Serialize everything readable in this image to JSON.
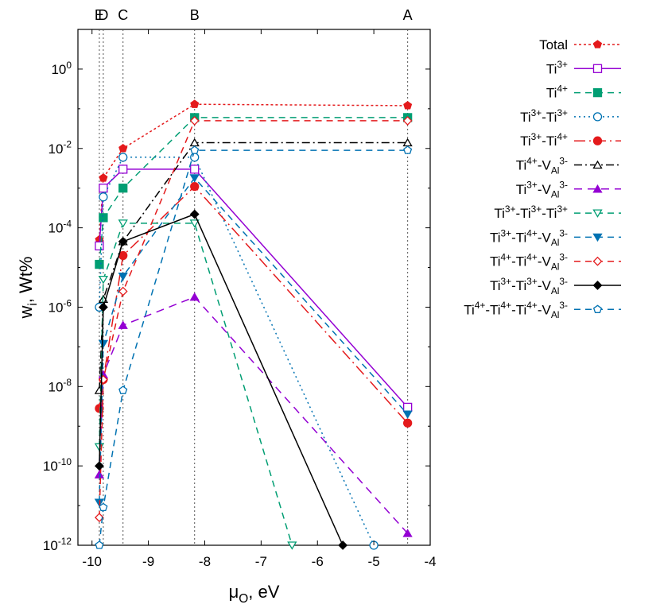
{
  "chart_data": {
    "type": "line",
    "xlabel": "μO, eV",
    "xlabel_main": "μ",
    "xlabel_sub": "O",
    "xlabel_rest": ", eV",
    "ylabel": "wi, Wt%",
    "ylabel_main": "w",
    "ylabel_sub": "i",
    "ylabel_rest": ", Wt%",
    "xlim": [
      -10.25,
      -4.0
    ],
    "ylim": [
      1e-12,
      10
    ],
    "y_scale": "log",
    "x_ticks": [
      {
        "value": -10,
        "label": "-10"
      },
      {
        "value": -9,
        "label": "-9"
      },
      {
        "value": -8,
        "label": "-8"
      },
      {
        "value": -7,
        "label": "-7"
      },
      {
        "value": -6,
        "label": "-6"
      },
      {
        "value": -5,
        "label": "-5"
      },
      {
        "value": -4,
        "label": "-4"
      }
    ],
    "y_ticks": [
      {
        "value": 1,
        "base": "10",
        "exp": "0"
      },
      {
        "value": 0.01,
        "base": "10",
        "exp": "-2"
      },
      {
        "value": 0.0001,
        "base": "10",
        "exp": "-4"
      },
      {
        "value": 1e-06,
        "base": "10",
        "exp": "-6"
      },
      {
        "value": 1e-08,
        "base": "10",
        "exp": "-8"
      },
      {
        "value": 1e-10,
        "base": "10",
        "exp": "-10"
      },
      {
        "value": 1e-12,
        "base": "10",
        "exp": "-12"
      }
    ],
    "vertical_lines": [
      {
        "x": -9.87,
        "label": "E"
      },
      {
        "x": -9.8,
        "label": "D"
      },
      {
        "x": -9.45,
        "label": "C"
      },
      {
        "x": -8.18,
        "label": "B"
      },
      {
        "x": -4.4,
        "label": "A"
      }
    ],
    "legend_position": "outside-right",
    "series": [
      {
        "name": "Total",
        "color": "#e41a1c",
        "dash": "3,3",
        "marker": "pentagon-filled",
        "x": [
          -9.87,
          -9.8,
          -9.45,
          -8.18,
          -4.4
        ],
        "y": [
          5e-05,
          0.0018,
          0.01,
          0.13,
          0.12
        ]
      },
      {
        "name": "Ti3+",
        "name_parts": [
          {
            "t": "Ti"
          },
          {
            "t": "3+",
            "s": "sup"
          }
        ],
        "color": "#9400d3",
        "dash": "",
        "marker": "square-open",
        "x": [
          -9.87,
          -9.8,
          -9.45,
          -8.18,
          -4.4
        ],
        "y": [
          3.5e-05,
          0.001,
          0.003,
          0.003,
          3e-09
        ]
      },
      {
        "name": "Ti4+",
        "name_parts": [
          {
            "t": "Ti"
          },
          {
            "t": "4+",
            "s": "sup"
          }
        ],
        "color": "#009e73",
        "dash": "8,6",
        "marker": "square-filled",
        "x": [
          -9.87,
          -9.8,
          -9.45,
          -8.18,
          -4.4
        ],
        "y": [
          1.2e-05,
          0.00018,
          0.001,
          0.06,
          0.06
        ]
      },
      {
        "name": "Ti3+-Ti3+",
        "name_parts": [
          {
            "t": "Ti"
          },
          {
            "t": "3+",
            "s": "sup"
          },
          {
            "t": "-Ti"
          },
          {
            "t": "3+",
            "s": "sup"
          }
        ],
        "color": "#0072b2",
        "dash": "2,4",
        "marker": "circle-open",
        "x": [
          -9.87,
          -9.8,
          -9.45,
          -8.18,
          -5.0
        ],
        "y": [
          1e-06,
          0.0006,
          0.006,
          0.006,
          1e-12
        ]
      },
      {
        "name": "Ti3+-Ti4+",
        "name_parts": [
          {
            "t": "Ti"
          },
          {
            "t": "3+",
            "s": "sup"
          },
          {
            "t": "-Ti"
          },
          {
            "t": "4+",
            "s": "sup"
          }
        ],
        "color": "#e41a1c",
        "dash": "14,5,2,5",
        "marker": "circle-filled",
        "x": [
          -9.87,
          -9.8,
          -9.45,
          -8.18,
          -4.4
        ],
        "y": [
          2.8e-09,
          1.5e-08,
          2e-05,
          0.0011,
          1.2e-09
        ]
      },
      {
        "name": "Ti4+-VAl3-",
        "name_parts": [
          {
            "t": "Ti"
          },
          {
            "t": "4+",
            "s": "sup"
          },
          {
            "t": "-V"
          },
          {
            "t": "Al",
            "s": "sub"
          },
          {
            "t": "3-",
            "s": "sup"
          }
        ],
        "color": "#000000",
        "dash": "10,4,2,4",
        "marker": "triangle-open",
        "x": [
          -9.87,
          -9.8,
          -9.45,
          -8.18,
          -4.4
        ],
        "y": [
          8e-09,
          1.6e-06,
          4.5e-05,
          0.014,
          0.014
        ]
      },
      {
        "name": "Ti3+-VAl3-",
        "name_parts": [
          {
            "t": "Ti"
          },
          {
            "t": "3+",
            "s": "sup"
          },
          {
            "t": "-V"
          },
          {
            "t": "Al",
            "s": "sub"
          },
          {
            "t": "3-",
            "s": "sup"
          }
        ],
        "color": "#9400d3",
        "dash": "10,7",
        "marker": "triangle-filled",
        "x": [
          -9.87,
          -9.8,
          -9.45,
          -8.18,
          -4.4
        ],
        "y": [
          6e-11,
          2e-08,
          3.5e-07,
          1.8e-06,
          2e-12
        ]
      },
      {
        "name": "Ti3+-Ti3+-Ti3+",
        "name_parts": [
          {
            "t": "Ti"
          },
          {
            "t": "3+",
            "s": "sup"
          },
          {
            "t": "-Ti"
          },
          {
            "t": "3+",
            "s": "sup"
          },
          {
            "t": "-Ti"
          },
          {
            "t": "3+",
            "s": "sup"
          }
        ],
        "color": "#009e73",
        "dash": "8,6",
        "marker": "triangle-down-open",
        "x": [
          -9.87,
          -9.8,
          -9.45,
          -8.18,
          -6.45
        ],
        "y": [
          3e-10,
          5e-06,
          0.00013,
          0.00013,
          1e-12
        ]
      },
      {
        "name": "Ti3+-Ti4+-VAl3-",
        "name_parts": [
          {
            "t": "Ti"
          },
          {
            "t": "3+",
            "s": "sup"
          },
          {
            "t": "-Ti"
          },
          {
            "t": "4+",
            "s": "sup"
          },
          {
            "t": "-V"
          },
          {
            "t": "Al",
            "s": "sub"
          },
          {
            "t": "3-",
            "s": "sup"
          }
        ],
        "color": "#0072b2",
        "dash": "8,6",
        "marker": "triangle-down-filled",
        "x": [
          -9.87,
          -9.8,
          -9.45,
          -8.18,
          -4.4
        ],
        "y": [
          1.2e-11,
          1.2e-07,
          6e-06,
          0.0018,
          2e-09
        ]
      },
      {
        "name": "Ti4+-Ti4+-VAl3-",
        "name_parts": [
          {
            "t": "Ti"
          },
          {
            "t": "4+",
            "s": "sup"
          },
          {
            "t": "-Ti"
          },
          {
            "t": "4+",
            "s": "sup"
          },
          {
            "t": "-V"
          },
          {
            "t": "Al",
            "s": "sub"
          },
          {
            "t": "3-",
            "s": "sup"
          }
        ],
        "color": "#e41a1c",
        "dash": "8,6",
        "marker": "diamond-open",
        "x": [
          -9.87,
          -9.8,
          -9.45,
          -8.18,
          -4.4
        ],
        "y": [
          5e-12,
          1.5e-08,
          2.5e-06,
          0.05,
          0.05
        ]
      },
      {
        "name": "Ti3+-Ti3+-VAl3-",
        "name_parts": [
          {
            "t": "Ti"
          },
          {
            "t": "3+",
            "s": "sup"
          },
          {
            "t": "-Ti"
          },
          {
            "t": "3+",
            "s": "sup"
          },
          {
            "t": "-V"
          },
          {
            "t": "Al",
            "s": "sub"
          },
          {
            "t": "3-",
            "s": "sup"
          }
        ],
        "color": "#000000",
        "dash": "",
        "marker": "diamond-filled",
        "x": [
          -9.87,
          -9.8,
          -9.45,
          -8.18,
          -5.55
        ],
        "y": [
          1e-10,
          1e-06,
          4.5e-05,
          0.00022,
          1e-12
        ]
      },
      {
        "name": "Ti4+-Ti4+-Ti4+-VAl3-",
        "name_parts": [
          {
            "t": "Ti"
          },
          {
            "t": "4+",
            "s": "sup"
          },
          {
            "t": "-Ti"
          },
          {
            "t": "4+",
            "s": "sup"
          },
          {
            "t": "-Ti"
          },
          {
            "t": "4+",
            "s": "sup"
          },
          {
            "t": "-V"
          },
          {
            "t": "Al",
            "s": "sub"
          },
          {
            "t": "3-",
            "s": "sup"
          }
        ],
        "color": "#0072b2",
        "dash": "8,6",
        "marker": "pentagon-open",
        "x": [
          -9.87,
          -9.8,
          -9.45,
          -8.18,
          -4.4
        ],
        "y": [
          1e-12,
          9e-12,
          8e-09,
          0.009,
          0.009
        ]
      }
    ]
  }
}
